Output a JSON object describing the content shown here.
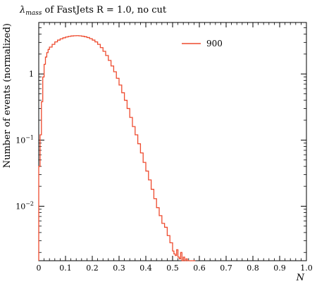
{
  "chart_data": {
    "type": "line",
    "title": {
      "symbol": "λ",
      "subscript": "mass",
      "rest": " of FastJets R = 1.0, no cut"
    },
    "xlabel": "N",
    "ylabel": "Number of events (normalized)",
    "xlim": [
      0,
      1.0
    ],
    "ylim": [
      0.0015,
      6
    ],
    "yscale": "log",
    "x_ticks": [
      0,
      0.1,
      0.2,
      0.3,
      0.4,
      0.5,
      0.6,
      0.7,
      0.8,
      0.9,
      1.0
    ],
    "x_tick_labels": [
      "0",
      "0.1",
      "0.2",
      "0.3",
      "0.4",
      "0.5",
      "0.6",
      "0.7",
      "0.8",
      "0.9",
      "1.0"
    ],
    "y_ticks": [
      {
        "value": 1,
        "base": "1",
        "exp": ""
      },
      {
        "value": 0.1,
        "base": "10",
        "exp": "−1"
      },
      {
        "value": 0.01,
        "base": "10",
        "exp": "−2"
      }
    ],
    "legend": {
      "position": "top-right"
    },
    "color": "#ee4a2e",
    "series": [
      {
        "name": "900",
        "step": "post",
        "x": [
          0.0,
          0.005,
          0.01,
          0.015,
          0.02,
          0.025,
          0.03,
          0.035,
          0.04,
          0.05,
          0.06,
          0.07,
          0.08,
          0.09,
          0.1,
          0.11,
          0.12,
          0.13,
          0.14,
          0.15,
          0.16,
          0.17,
          0.18,
          0.19,
          0.2,
          0.21,
          0.22,
          0.23,
          0.24,
          0.25,
          0.26,
          0.27,
          0.28,
          0.29,
          0.3,
          0.31,
          0.32,
          0.33,
          0.34,
          0.35,
          0.36,
          0.37,
          0.38,
          0.39,
          0.4,
          0.41,
          0.42,
          0.43,
          0.44,
          0.45,
          0.46,
          0.47,
          0.48,
          0.49,
          0.5,
          0.505,
          0.51,
          0.515,
          0.52,
          0.525,
          0.53,
          0.535,
          0.54,
          0.545,
          0.55,
          0.555,
          0.56,
          0.565,
          0.57,
          0.575,
          0.58
        ],
        "y": [
          0.04,
          0.12,
          0.38,
          0.9,
          1.4,
          1.8,
          2.1,
          2.35,
          2.55,
          2.8,
          3.05,
          3.25,
          3.4,
          3.52,
          3.62,
          3.7,
          3.75,
          3.78,
          3.79,
          3.77,
          3.72,
          3.65,
          3.55,
          3.42,
          3.25,
          3.05,
          2.8,
          2.5,
          2.2,
          1.9,
          1.6,
          1.32,
          1.08,
          0.86,
          0.68,
          0.52,
          0.4,
          0.3,
          0.22,
          0.16,
          0.12,
          0.088,
          0.064,
          0.046,
          0.034,
          0.025,
          0.018,
          0.013,
          0.0095,
          0.0072,
          0.0055,
          0.0048,
          0.0036,
          0.0028,
          0.0021,
          0.0019,
          0.0018,
          0.0022,
          0.0017,
          0.0016,
          0.002,
          0.0015,
          0.0017,
          0.0015,
          0.0016,
          0.0015,
          0.0015,
          0.0015,
          0.0015,
          0.0015,
          0.0015
        ]
      }
    ]
  }
}
